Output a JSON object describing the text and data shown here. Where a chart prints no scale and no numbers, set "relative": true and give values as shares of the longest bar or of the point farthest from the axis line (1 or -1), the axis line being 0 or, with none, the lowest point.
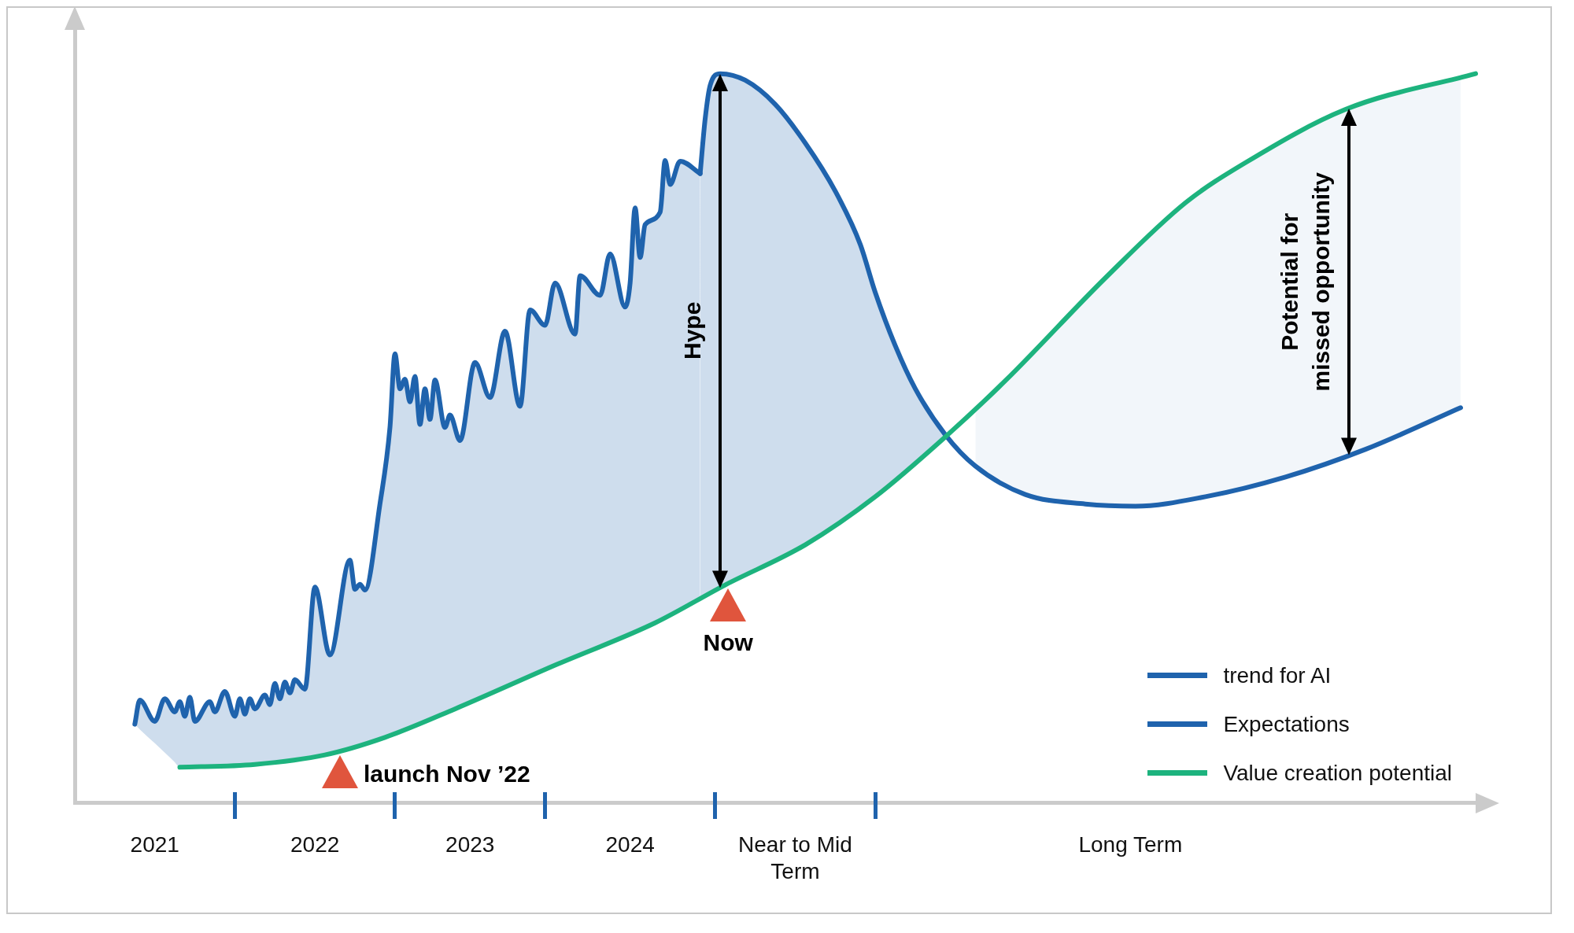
{
  "chart_data": {
    "type": "line",
    "relative": true,
    "marker": "none",
    "legend": "bottom right",
    "categories": [
      null,
      null,
      null,
      null,
      null,
      null,
      null,
      null,
      null,
      null,
      null,
      null,
      null,
      null,
      null,
      null,
      "2021",
      null,
      null,
      null,
      null,
      null,
      null,
      null,
      null,
      null,
      null,
      null,
      null,
      null,
      null,
      null,
      null,
      null,
      null,
      null,
      null,
      null,
      null,
      null,
      null,
      null,
      null,
      null,
      null,
      null,
      null,
      null,
      "2022",
      null,
      null,
      null,
      null,
      null,
      null,
      null,
      null,
      null,
      null,
      null,
      null,
      null,
      null,
      null,
      null,
      null,
      null,
      null,
      null,
      null,
      null,
      null,
      null,
      null,
      null,
      null,
      null,
      null,
      null,
      "2023",
      null,
      null,
      null,
      null,
      null,
      null,
      null,
      null,
      null,
      null,
      null,
      null,
      null,
      null,
      null,
      null,
      null,
      null,
      null,
      null,
      null,
      null,
      null,
      null,
      null,
      null,
      null,
      null,
      null,
      null,
      null,
      "2024",
      null,
      null,
      null,
      null,
      null,
      null,
      null,
      null,
      null,
      null,
      null,
      null,
      null,
      null,
      null,
      null,
      null,
      null,
      null,
      null,
      null,
      null,
      null,
      null,
      null,
      null,
      null,
      null,
      null,
      null,
      null,
      null,
      "Near to Mid Term",
      null,
      null,
      null,
      null,
      null,
      null,
      null,
      null,
      null,
      null,
      null,
      null,
      null,
      null,
      null,
      null,
      null,
      null,
      null,
      null,
      null,
      null,
      null,
      null,
      null,
      null,
      null,
      null,
      null,
      null,
      null,
      null,
      null,
      null,
      null,
      null,
      null,
      null,
      null,
      null,
      null,
      null,
      null,
      null,
      null,
      null,
      null,
      null,
      null,
      null,
      null,
      null,
      null,
      null,
      null,
      null,
      null,
      null,
      null,
      null,
      null,
      null,
      null,
      null,
      null,
      null,
      "Long Term",
      null,
      null,
      null,
      null,
      null,
      null,
      null,
      null,
      null,
      null,
      null,
      null,
      null,
      null,
      null,
      null,
      null,
      null,
      null,
      null,
      null,
      null,
      null,
      null,
      null,
      null,
      null,
      null,
      null,
      null,
      null,
      null,
      null,
      null,
      null,
      null,
      null,
      null,
      null,
      null,
      null,
      null,
      null,
      null,
      null,
      null,
      null,
      null,
      null,
      null,
      null,
      null,
      null,
      null,
      null,
      null,
      null,
      null,
      null,
      null,
      null,
      null,
      null,
      null,
      null,
      null,
      null,
      null,
      null
    ],
    "annotations": [
      "Hype",
      "Potential for missed opportunity",
      "Now",
      "launch Nov ’22"
    ],
    "series": [
      {
        "name": "trend for AI",
        "color": "#1f63ad",
        "values": [
          null,
          null,
          null,
          null,
          null,
          null,
          null,
          null,
          null,
          null,
          null,
          null,
          0.108,
          0.141,
          null,
          null,
          0.112,
          null,
          0.143,
          null,
          0.125,
          0.139,
          0.119,
          0.145,
          0.112,
          null,
          null,
          0.139,
          0.125,
          null,
          0.153,
          null,
          0.119,
          0.143,
          0.122,
          0.143,
          0.129,
          null,
          0.148,
          0.135,
          0.164,
          0.143,
          0.166,
          0.151,
          0.169,
          null,
          0.156,
          null,
          0.296,
          null,
          null,
          0.203,
          null,
          null,
          null,
          0.333,
          0.293,
          0.3,
          0.292,
          null,
          null,
          0.41,
          null,
          0.515,
          0.616,
          0.568,
          0.581,
          0.55,
          0.585,
          0.519,
          0.568,
          0.526,
          0.58,
          null,
          0.515,
          0.532,
          null,
          0.497,
          null,
          null,
          0.604,
          null,
          null,
          0.556,
          null,
          null,
          0.647,
          null,
          null,
          0.544,
          null,
          0.676,
          null,
          null,
          0.655,
          null,
          0.713,
          null,
          null,
          null,
          0.643,
          0.723,
          null,
          null,
          null,
          0.696,
          null,
          0.753,
          null,
          null,
          0.68,
          0.713,
          0.816,
          0.748,
          0.793,
          null,
          null,
          0.81,
          0.881,
          0.848,
          null,
          0.88,
          null,
          null,
          null,
          0.863,
          null,
          null,
          null,
          null,
          null,
          null,
          null,
          null,
          null,
          null,
          null,
          null,
          null,
          null,
          null,
          null,
          null,
          null,
          null,
          null,
          null,
          null,
          null,
          null,
          null,
          null,
          null,
          null,
          null,
          null,
          null,
          null,
          null,
          null,
          null,
          null,
          null,
          null,
          null,
          null,
          null,
          null,
          null,
          null,
          null,
          null,
          null,
          null,
          null,
          null,
          null,
          null,
          null,
          null,
          null,
          null,
          null,
          null,
          null,
          null,
          null,
          null,
          null,
          null,
          null,
          null,
          null,
          null,
          null,
          null,
          null,
          null,
          null,
          null,
          null,
          null,
          null,
          null,
          null,
          null,
          null,
          null,
          null,
          null,
          null,
          null,
          null,
          null,
          null,
          null,
          null,
          null,
          null,
          null,
          null,
          null,
          null,
          null,
          null,
          null,
          null,
          null,
          null,
          null,
          null,
          null,
          null,
          null,
          null,
          null,
          null,
          null,
          null,
          null,
          null,
          null,
          null,
          null,
          null,
          null,
          null,
          null,
          null,
          null,
          null,
          null,
          null,
          null,
          null,
          null,
          null,
          null,
          null,
          null,
          null,
          null,
          null,
          null,
          null,
          null,
          null,
          null,
          null,
          null,
          null,
          null,
          null,
          null,
          null,
          null,
          null,
          null,
          null,
          null,
          null
        ],
        "upper": [
          null,
          null,
          null,
          null,
          null,
          null,
          null,
          null,
          null,
          null,
          null,
          null,
          0.108,
          0.141,
          null,
          null,
          0.112,
          null,
          0.143,
          null,
          0.125,
          0.139,
          0.119,
          0.145,
          0.112,
          null,
          null,
          0.139,
          0.125,
          null,
          0.153,
          null,
          0.119,
          0.143,
          0.122,
          0.143,
          0.129,
          null,
          0.148,
          0.135,
          0.164,
          0.143,
          0.166,
          0.151,
          0.169,
          null,
          0.156,
          null,
          0.296,
          null,
          null,
          0.203,
          null,
          null,
          null,
          0.333,
          0.293,
          0.3,
          0.292,
          null,
          null,
          0.41,
          null,
          0.515,
          0.616,
          0.568,
          0.581,
          0.55,
          0.585,
          0.519,
          0.568,
          0.526,
          0.58,
          null,
          0.515,
          0.532,
          null,
          0.497,
          null,
          null,
          0.604,
          null,
          null,
          0.556,
          null,
          null,
          0.647,
          null,
          null,
          0.544,
          null,
          0.676,
          null,
          null,
          0.655,
          null,
          0.713,
          null,
          null,
          null,
          0.643,
          0.723,
          null,
          null,
          null,
          0.696,
          null,
          0.753,
          null,
          null,
          0.68,
          0.713,
          0.816,
          0.748,
          0.793,
          null,
          null,
          0.81,
          0.881,
          0.848,
          null,
          0.88,
          null,
          null,
          null,
          0.863,
          null,
          null,
          null,
          null,
          null,
          null,
          null,
          null,
          null,
          null,
          null,
          null,
          null,
          null,
          null,
          null,
          null,
          null,
          null,
          null,
          null,
          null,
          null,
          null,
          null,
          null,
          null,
          null,
          null,
          null,
          null,
          null,
          null,
          null,
          null,
          null,
          null,
          null,
          null,
          null,
          null,
          null,
          null,
          null,
          null,
          null,
          null,
          null,
          null,
          null,
          null,
          null,
          null,
          null,
          null,
          null,
          null,
          null,
          null,
          null,
          null,
          null,
          null,
          null,
          null,
          null,
          null,
          null,
          null,
          null,
          null,
          null,
          null,
          null,
          null,
          null,
          null,
          null,
          null,
          null,
          null,
          null,
          null,
          null,
          null,
          null,
          null,
          null,
          null,
          null,
          null,
          null,
          null,
          null,
          null,
          null,
          null,
          null,
          null,
          null,
          null,
          null,
          null,
          null,
          null,
          null,
          null,
          null,
          null,
          null,
          null,
          null,
          null,
          null,
          null,
          null,
          null,
          null,
          null,
          null,
          null,
          null,
          null,
          null,
          null,
          null,
          null,
          null,
          null,
          null,
          null,
          null,
          null,
          null,
          null,
          null,
          null,
          null,
          null,
          null,
          null,
          null,
          null,
          null,
          null,
          null,
          null,
          null,
          null,
          null,
          null,
          null,
          null,
          null,
          null
        ],
        "lower": [
          null,
          null,
          null,
          null,
          null,
          null,
          null,
          null,
          null,
          null,
          null,
          null,
          0.108,
          0.101,
          null,
          null,
          0.082,
          null,
          0.069,
          null,
          0.056,
          0.049,
          0.049,
          0.05,
          0.05,
          null,
          null,
          0.051,
          0.051,
          null,
          0.051,
          null,
          0.052,
          0.052,
          0.052,
          0.053,
          0.053,
          null,
          0.055,
          0.056,
          0.057,
          0.058,
          0.058,
          0.059,
          0.06,
          null,
          0.062,
          null,
          0.064,
          null,
          null,
          0.068,
          null,
          null,
          null,
          0.076,
          0.078,
          0.08,
          0.082,
          null,
          null,
          0.088,
          null,
          0.093,
          0.096,
          0.098,
          0.101,
          0.104,
          0.107,
          0.11,
          0.112,
          0.115,
          0.118,
          null,
          0.123,
          0.126,
          null,
          0.132,
          null,
          null,
          0.141,
          null,
          null,
          0.15,
          null,
          null,
          0.159,
          null,
          null,
          0.168,
          null,
          0.174,
          null,
          null,
          0.183,
          null,
          0.189,
          null,
          null,
          null,
          0.201,
          0.204,
          null,
          null,
          null,
          0.215,
          null,
          0.221,
          null,
          null,
          0.23,
          0.233,
          0.235,
          0.238,
          0.241,
          null,
          null,
          0.251,
          0.254,
          0.258,
          null,
          0.265,
          null,
          null,
          null,
          0.28,
          null,
          null,
          null,
          null,
          null,
          null,
          null,
          null,
          null,
          null,
          null,
          null,
          null,
          null,
          null,
          null,
          null,
          null,
          null,
          null,
          null,
          null,
          null,
          null,
          null,
          null,
          null,
          null,
          null,
          null,
          null,
          null,
          null,
          null,
          null,
          null,
          null,
          null,
          null,
          null,
          null,
          null,
          null,
          null,
          null,
          null,
          null,
          null,
          null,
          null,
          null,
          null,
          null,
          null,
          null,
          null,
          null,
          null,
          null,
          null,
          null,
          null,
          null,
          null,
          null,
          null,
          null,
          null,
          null,
          null,
          null,
          null,
          null,
          null,
          null,
          null,
          null,
          null,
          null,
          null,
          null,
          null,
          null,
          null,
          null,
          null,
          null,
          null,
          null,
          null,
          null,
          null,
          null,
          null,
          null,
          null,
          null,
          null,
          null,
          null,
          null,
          null,
          null,
          null,
          null,
          null,
          null,
          null,
          null,
          null,
          null,
          null,
          null,
          null,
          null,
          null,
          null,
          null,
          null,
          null,
          null,
          null,
          null,
          null,
          null,
          null,
          null,
          null,
          null,
          null,
          null,
          null,
          null,
          null,
          null,
          null,
          null,
          null,
          null,
          null,
          null,
          null,
          null,
          null,
          null,
          null,
          null,
          null,
          null,
          null,
          null,
          null,
          null,
          null,
          null
        ]
      },
      {
        "name": "Expectations",
        "color": "#1f63ad",
        "values": [
          null,
          null,
          null,
          null,
          null,
          null,
          null,
          null,
          null,
          null,
          null,
          null,
          null,
          null,
          null,
          null,
          null,
          null,
          null,
          null,
          null,
          null,
          null,
          null,
          null,
          null,
          null,
          null,
          null,
          null,
          null,
          null,
          null,
          null,
          null,
          null,
          null,
          null,
          null,
          null,
          null,
          null,
          null,
          null,
          null,
          null,
          null,
          null,
          null,
          null,
          null,
          null,
          null,
          null,
          null,
          null,
          null,
          null,
          null,
          null,
          null,
          null,
          null,
          null,
          null,
          null,
          null,
          null,
          null,
          null,
          null,
          null,
          null,
          null,
          null,
          null,
          null,
          null,
          null,
          null,
          null,
          null,
          null,
          null,
          null,
          null,
          null,
          null,
          null,
          null,
          null,
          null,
          null,
          null,
          null,
          null,
          null,
          null,
          null,
          null,
          null,
          null,
          null,
          null,
          null,
          null,
          null,
          null,
          null,
          null,
          null,
          null,
          null,
          null,
          null,
          null,
          null,
          null,
          null,
          null,
          null,
          null,
          null,
          null,
          null,
          0.863,
          0.938,
          0.984,
          null,
          1.0,
          null,
          null,
          null,
          null,
          0.991,
          null,
          null,
          null,
          null,
          null,
          0.958,
          null,
          null,
          null,
          null,
          null,
          0.905,
          null,
          null,
          null,
          null,
          null,
          0.839,
          null,
          null,
          null,
          null,
          0.766,
          null,
          null,
          0.7,
          null,
          null,
          null,
          0.627,
          null,
          null,
          null,
          0.568,
          null,
          null,
          null,
          null,
          null,
          0.505,
          null,
          null,
          null,
          null,
          null,
          0.462,
          null,
          null,
          null,
          null,
          null,
          null,
          null,
          null,
          null,
          0.423,
          null,
          null,
          null,
          null,
          null,
          null,
          null,
          null,
          null,
          null,
          null,
          0.41,
          null,
          null,
          null,
          null,
          null,
          null,
          null,
          null,
          null,
          0.407,
          null,
          null,
          null,
          null,
          null,
          null,
          null,
          null,
          null,
          null,
          null,
          null,
          null,
          0.42,
          null,
          null,
          null,
          null,
          null,
          null,
          null,
          null,
          null,
          null,
          null,
          null,
          null,
          null,
          null,
          0.447,
          null,
          null,
          null,
          null,
          null,
          null,
          null,
          null,
          null,
          null,
          null,
          null,
          null,
          null,
          null,
          0.485,
          null,
          null,
          null,
          null,
          null,
          null,
          null,
          null,
          null,
          null,
          null,
          null,
          null,
          null,
          null,
          null,
          null,
          null,
          0.542,
          null,
          null,
          null
        ],
        "upper": [
          null,
          null,
          null,
          null,
          null,
          null,
          null,
          null,
          null,
          null,
          null,
          null,
          null,
          null,
          null,
          null,
          null,
          null,
          null,
          null,
          null,
          null,
          null,
          null,
          null,
          null,
          null,
          null,
          null,
          null,
          null,
          null,
          null,
          null,
          null,
          null,
          null,
          null,
          null,
          null,
          null,
          null,
          null,
          null,
          null,
          null,
          null,
          null,
          null,
          null,
          null,
          null,
          null,
          null,
          null,
          null,
          null,
          null,
          null,
          null,
          null,
          null,
          null,
          null,
          null,
          null,
          null,
          null,
          null,
          null,
          null,
          null,
          null,
          null,
          null,
          null,
          null,
          null,
          null,
          null,
          null,
          null,
          null,
          null,
          null,
          null,
          null,
          null,
          null,
          null,
          null,
          null,
          null,
          null,
          null,
          null,
          null,
          null,
          null,
          null,
          null,
          null,
          null,
          null,
          null,
          null,
          null,
          null,
          null,
          null,
          null,
          null,
          null,
          null,
          null,
          null,
          null,
          null,
          null,
          null,
          null,
          null,
          null,
          null,
          null,
          0.863,
          0.938,
          0.984,
          null,
          1.0,
          null,
          null,
          null,
          null,
          0.991,
          null,
          null,
          null,
          null,
          null,
          0.958,
          null,
          null,
          null,
          null,
          null,
          0.905,
          null,
          null,
          null,
          null,
          null,
          0.839,
          null,
          null,
          null,
          null,
          0.766,
          null,
          null,
          0.7,
          null,
          null,
          null,
          0.627,
          null,
          null,
          null,
          0.568,
          null,
          null,
          null,
          null,
          null,
          0.505,
          null,
          null,
          null,
          null,
          null,
          0.541,
          null,
          null,
          null,
          null,
          null,
          null,
          null,
          null,
          null,
          0.607,
          null,
          null,
          null,
          null,
          null,
          null,
          null,
          null,
          null,
          null,
          null,
          0.692,
          null,
          null,
          null,
          null,
          null,
          null,
          null,
          null,
          null,
          0.759,
          null,
          null,
          null,
          null,
          null,
          null,
          null,
          null,
          null,
          null,
          null,
          null,
          null,
          0.841,
          null,
          null,
          null,
          null,
          null,
          null,
          null,
          null,
          null,
          null,
          null,
          null,
          null,
          null,
          null,
          0.907,
          null,
          null,
          null,
          null,
          null,
          null,
          null,
          null,
          null,
          null,
          null,
          null,
          null,
          null,
          null,
          0.959,
          null,
          null,
          null,
          null,
          null,
          null,
          null,
          null,
          null,
          null,
          null,
          null,
          null,
          null,
          null,
          null,
          null,
          null,
          0.994,
          null,
          null,
          null
        ],
        "lower": [
          null,
          null,
          null,
          null,
          null,
          null,
          null,
          null,
          null,
          null,
          null,
          null,
          null,
          null,
          null,
          null,
          null,
          null,
          null,
          null,
          null,
          null,
          null,
          null,
          null,
          null,
          null,
          null,
          null,
          null,
          null,
          null,
          null,
          null,
          null,
          null,
          null,
          null,
          null,
          null,
          null,
          null,
          null,
          null,
          null,
          null,
          null,
          null,
          null,
          null,
          null,
          null,
          null,
          null,
          null,
          null,
          null,
          null,
          null,
          null,
          null,
          null,
          null,
          null,
          null,
          null,
          null,
          null,
          null,
          null,
          null,
          null,
          null,
          null,
          null,
          null,
          null,
          null,
          null,
          null,
          null,
          null,
          null,
          null,
          null,
          null,
          null,
          null,
          null,
          null,
          null,
          null,
          null,
          null,
          null,
          null,
          null,
          null,
          null,
          null,
          null,
          null,
          null,
          null,
          null,
          null,
          null,
          null,
          null,
          null,
          null,
          null,
          null,
          null,
          null,
          null,
          null,
          null,
          null,
          null,
          null,
          null,
          null,
          null,
          null,
          0.28,
          0.284,
          0.288,
          null,
          0.295,
          null,
          null,
          null,
          null,
          0.313,
          null,
          null,
          null,
          null,
          null,
          0.333,
          null,
          null,
          null,
          null,
          null,
          0.354,
          null,
          null,
          null,
          null,
          null,
          0.382,
          null,
          null,
          null,
          null,
          0.406,
          null,
          null,
          0.42,
          null,
          null,
          null,
          0.443,
          null,
          null,
          null,
          0.467,
          null,
          null,
          null,
          null,
          null,
          0.502,
          null,
          null,
          null,
          null,
          null,
          0.462,
          null,
          null,
          null,
          null,
          null,
          null,
          null,
          null,
          null,
          0.423,
          null,
          null,
          null,
          null,
          null,
          null,
          null,
          null,
          null,
          null,
          null,
          0.41,
          null,
          null,
          null,
          null,
          null,
          null,
          null,
          null,
          null,
          0.407,
          null,
          null,
          null,
          null,
          null,
          null,
          null,
          null,
          null,
          null,
          null,
          null,
          null,
          0.42,
          null,
          null,
          null,
          null,
          null,
          null,
          null,
          null,
          null,
          null,
          null,
          null,
          null,
          null,
          null,
          0.447,
          null,
          null,
          null,
          null,
          null,
          null,
          null,
          null,
          null,
          null,
          null,
          null,
          null,
          null,
          null,
          0.485,
          null,
          null,
          null,
          null,
          null,
          null,
          null,
          null,
          null,
          null,
          null,
          null,
          null,
          null,
          null,
          null,
          null,
          null,
          0.542,
          null,
          null,
          null
        ]
      },
      {
        "name": "Value creation potential",
        "color": "#1db37e",
        "values": [
          null,
          null,
          null,
          null,
          null,
          null,
          null,
          null,
          null,
          null,
          null,
          null,
          null,
          null,
          null,
          null,
          null,
          null,
          null,
          null,
          null,
          0.049,
          null,
          null,
          null,
          null,
          null,
          null,
          null,
          null,
          null,
          null,
          null,
          null,
          null,
          null,
          0.053,
          null,
          null,
          null,
          null,
          null,
          null,
          null,
          null,
          null,
          null,
          null,
          null,
          null,
          0.066,
          null,
          null,
          null,
          null,
          null,
          null,
          null,
          null,
          null,
          null,
          null,
          0.09,
          null,
          null,
          null,
          null,
          null,
          null,
          null,
          null,
          null,
          null,
          null,
          null,
          null,
          0.129,
          null,
          null,
          null,
          null,
          null,
          null,
          null,
          null,
          null,
          null,
          null,
          null,
          null,
          null,
          null,
          null,
          null,
          null,
          null,
          0.189,
          null,
          null,
          null,
          null,
          null,
          null,
          null,
          null,
          null,
          null,
          null,
          null,
          null,
          null,
          null,
          null,
          null,
          null,
          null,
          0.247,
          null,
          null,
          null,
          null,
          null,
          null,
          null,
          null,
          null,
          null,
          null,
          null,
          null,
          0.299,
          null,
          null,
          null,
          null,
          null,
          null,
          null,
          null,
          null,
          null,
          null,
          null,
          null,
          null,
          null,
          0.354,
          null,
          null,
          null,
          null,
          null,
          null,
          null,
          null,
          null,
          null,
          null,
          null,
          null,
          0.42,
          null,
          null,
          null,
          null,
          null,
          null,
          null,
          null,
          null,
          null,
          null,
          null,
          null,
          0.502,
          null,
          null,
          null,
          null,
          null,
          null,
          null,
          null,
          null,
          null,
          null,
          0.579,
          null,
          null,
          null,
          null,
          null,
          null,
          null,
          null,
          null,
          null,
          null,
          null,
          null,
          null,
          null,
          null,
          null,
          null,
          null,
          0.72,
          null,
          null,
          null,
          null,
          null,
          null,
          null,
          null,
          null,
          null,
          null,
          null,
          null,
          null,
          null,
          0.823,
          null,
          null,
          null,
          null,
          null,
          null,
          null,
          null,
          null,
          null,
          null,
          0.878,
          null,
          null,
          null,
          null,
          null,
          null,
          null,
          null,
          null,
          null,
          null,
          null,
          null,
          null,
          null,
          null,
          null,
          null,
          null,
          0.951,
          null,
          null,
          null,
          null,
          null,
          null,
          null,
          null,
          null,
          null,
          null,
          null,
          null,
          null,
          null,
          null,
          null,
          null,
          null,
          null,
          null,
          null,
          null,
          null,
          null,
          1.0
        ]
      }
    ]
  }
}
